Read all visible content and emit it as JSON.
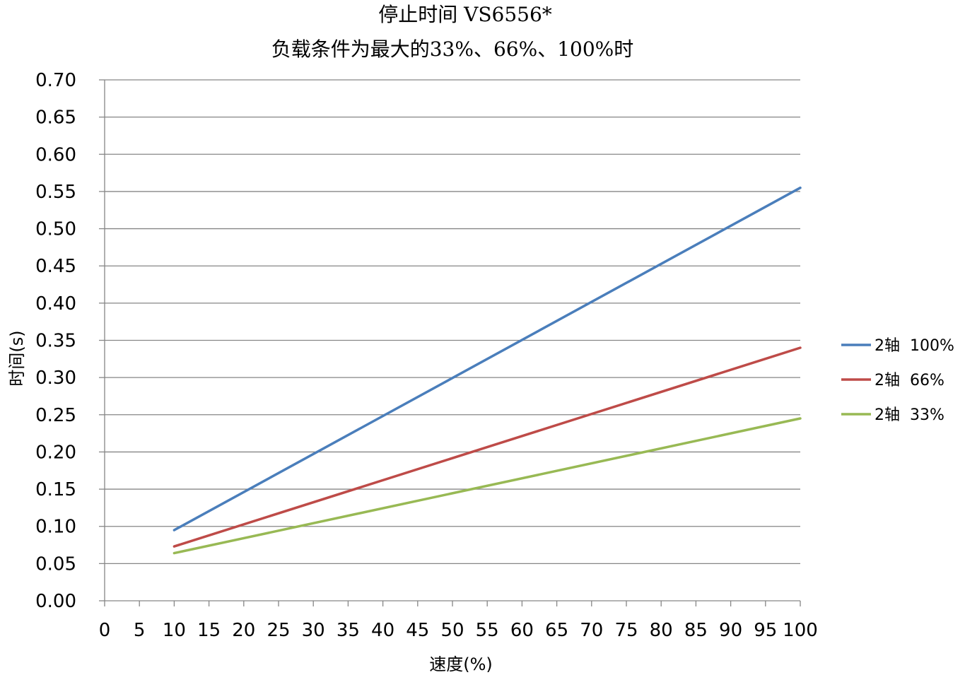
{
  "chart_data": {
    "type": "line",
    "title_lines": [
      "停止时间 VS6556*",
      "负载条件为最大的33%、66%、100%时"
    ],
    "xlabel": "速度(%)",
    "ylabel": "时间(s)",
    "x_ticks": [
      "0",
      "5",
      "10",
      "15",
      "20",
      "25",
      "30",
      "35",
      "40",
      "45",
      "50",
      "55",
      "60",
      "65",
      "70",
      "75",
      "80",
      "85",
      "90",
      "95",
      "100"
    ],
    "y_ticks": [
      "0.00",
      "0.05",
      "0.10",
      "0.15",
      "0.20",
      "0.25",
      "0.30",
      "0.35",
      "0.40",
      "0.45",
      "0.50",
      "0.55",
      "0.60",
      "0.65",
      "0.70"
    ],
    "xlim": [
      0,
      100
    ],
    "ylim": [
      0,
      0.7
    ],
    "grid": "horizontal",
    "legend_position": "right",
    "series": [
      {
        "name": "2轴  100%",
        "color": "#4A7EBB",
        "x": [
          10,
          100
        ],
        "y": [
          0.095,
          0.555
        ]
      },
      {
        "name": "2轴  66%",
        "color": "#BE4B48",
        "x": [
          10,
          100
        ],
        "y": [
          0.073,
          0.34
        ]
      },
      {
        "name": "2轴  33%",
        "color": "#98B954",
        "x": [
          10,
          100
        ],
        "y": [
          0.064,
          0.245
        ]
      }
    ]
  }
}
